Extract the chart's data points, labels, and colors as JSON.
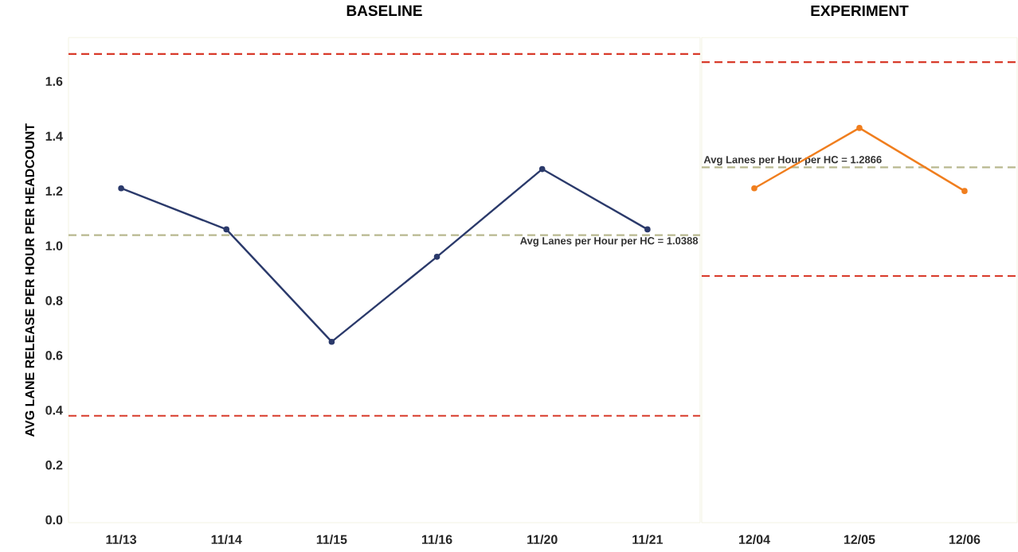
{
  "chart_data": [
    {
      "type": "line",
      "title": "BASELINE",
      "ylabel": "AVG LANE RELEASE PER HOUR PER HEADCOUNT",
      "categories": [
        "11/13",
        "11/14",
        "11/15",
        "11/16",
        "11/20",
        "11/21"
      ],
      "series": [
        {
          "color": "#2b3a6b",
          "values": [
            1.21,
            1.06,
            0.65,
            0.96,
            1.28,
            1.06
          ]
        }
      ],
      "ylim": [
        -0.01,
        1.76
      ],
      "yticks": [
        {
          "value": 0,
          "label": "0.0"
        },
        {
          "value": 0.2,
          "label": "0.2"
        },
        {
          "value": 0.4,
          "label": "0.4"
        },
        {
          "value": 0.6,
          "label": "0.6"
        },
        {
          "value": 0.8,
          "label": "0.8"
        },
        {
          "value": 1,
          "label": "1.0"
        },
        {
          "value": 1.2,
          "label": "1.2"
        },
        {
          "value": 1.4,
          "label": "1.4"
        },
        {
          "value": 1.6,
          "label": "1.6"
        }
      ],
      "ref_lines": [
        {
          "axis": "y",
          "value": 1.0388,
          "label": "Avg Lanes per Hour per HC = 1.0388",
          "color": "#b8b88f",
          "line_style": "dashed"
        },
        {
          "axis": "y",
          "value": 1.7,
          "color": "#d83a2a",
          "line_style": "dashed"
        },
        {
          "axis": "y",
          "value": 0.38,
          "color": "#d83a2a",
          "line_style": "dashed"
        }
      ],
      "marker": "circle"
    },
    {
      "type": "line",
      "title": "EXPERIMENT",
      "categories": [
        "12/04",
        "12/05",
        "12/06"
      ],
      "series": [
        {
          "color": "#f07e1e",
          "values": [
            1.21,
            1.43,
            1.2
          ]
        }
      ],
      "ylim": [
        -0.01,
        1.76
      ],
      "yticks": [
        {
          "value": 0,
          "label": null
        },
        {
          "value": 0.2,
          "label": null
        },
        {
          "value": 0.4,
          "label": null
        },
        {
          "value": 0.6,
          "label": null
        },
        {
          "value": 0.8,
          "label": null
        },
        {
          "value": 1,
          "label": null
        },
        {
          "value": 1.2,
          "label": null
        },
        {
          "value": 1.4,
          "label": null
        },
        {
          "value": 1.6,
          "label": null
        }
      ],
      "ref_lines": [
        {
          "axis": "y",
          "value": 1.2866,
          "label": "Avg Lanes per Hour per HC = 1.2866",
          "color": "#b8b88f",
          "line_style": "dashed"
        },
        {
          "axis": "y",
          "value": 1.67,
          "color": "#d83a2a",
          "line_style": "dashed"
        },
        {
          "axis": "y",
          "value": 0.89,
          "color": "#d83a2a",
          "line_style": "dashed"
        }
      ],
      "marker": "circle",
      "tick_labels": "x"
    }
  ]
}
